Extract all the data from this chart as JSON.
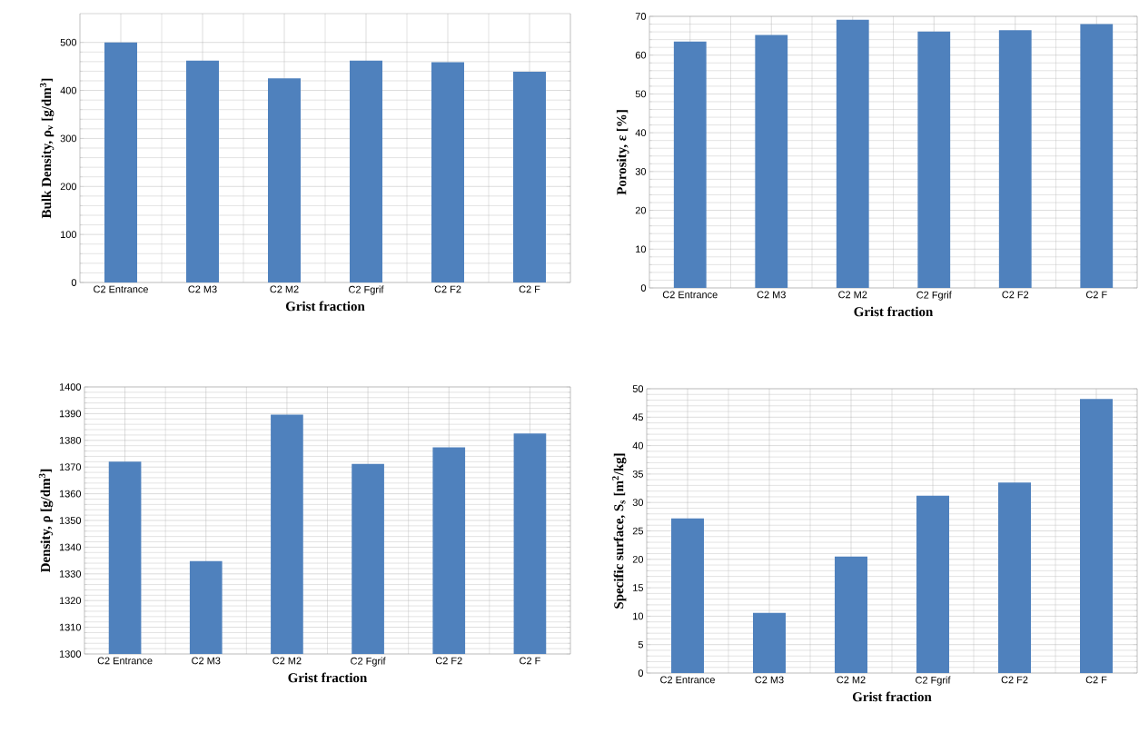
{
  "chart_data": [
    {
      "type": "bar",
      "categories": [
        "C2 Entrance",
        "C2 M3",
        "C2 M2",
        "C2 Fgrif",
        "C2 F2",
        "C2 F"
      ],
      "values": [
        500,
        462,
        425,
        462,
        459,
        439
      ],
      "color": "#4f81bd",
      "ylim": [
        0,
        560
      ],
      "yticks": [
        0,
        100,
        200,
        300,
        400,
        500
      ],
      "xlabel": "Grist fraction",
      "ylabel": "Bulk Density, ρ$_{v}$ [g/dm$^{3}$]",
      "grid": true
    },
    {
      "type": "bar",
      "categories": [
        "C2 Entrance",
        "C2 M3",
        "C2 M2",
        "C2 Fgrif",
        "C2 F2",
        "C2 F"
      ],
      "values": [
        63.5,
        65.2,
        69.1,
        66.1,
        66.4,
        68.0
      ],
      "color": "#4f81bd",
      "ylim": [
        0,
        70
      ],
      "yticks": [
        0,
        10,
        20,
        30,
        40,
        50,
        60,
        70
      ],
      "xlabel": "Grist fraction",
      "ylabel": "Porosity, ε [%]",
      "grid": true
    },
    {
      "type": "bar",
      "categories": [
        "C2 Entrance",
        "C2 M3",
        "C2 M2",
        "C2 Fgrif",
        "C2 F2",
        "C2 F"
      ],
      "values": [
        1372,
        1334.8,
        1389.6,
        1371.2,
        1377.4,
        1382.6
      ],
      "color": "#4f81bd",
      "ylim": [
        1300,
        1400
      ],
      "yticks": [
        1300,
        1310,
        1320,
        1330,
        1340,
        1350,
        1360,
        1370,
        1380,
        1390,
        1400
      ],
      "xlabel": "Grist fraction",
      "ylabel": "Density, ρ [g/dm$^{3}$]",
      "grid": true
    },
    {
      "type": "bar",
      "categories": [
        "C2 Entrance",
        "C2 M3",
        "C2 M2",
        "C2 Fgrif",
        "C2 F2",
        "C2 F"
      ],
      "values": [
        27.2,
        10.6,
        20.5,
        31.2,
        33.5,
        48.2
      ],
      "color": "#4f81bd",
      "ylim": [
        0,
        50
      ],
      "yticks": [
        0,
        5,
        10,
        15,
        20,
        25,
        30,
        35,
        40,
        45,
        50
      ],
      "xlabel": "Grist fraction",
      "ylabel": "Specific surface, S$_{s}$ [m$^{2}$/kg]",
      "grid": true
    }
  ]
}
